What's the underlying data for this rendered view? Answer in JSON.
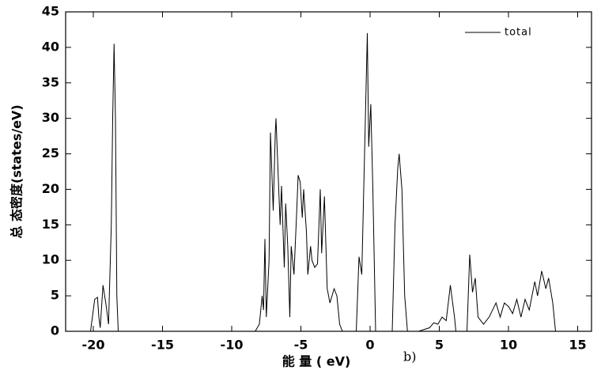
{
  "chart_data": {
    "type": "line",
    "x_label": "能 量 ( eV)",
    "y_label": "总 态密度(states/eV)",
    "annotation": "b)",
    "legend_position": "upper right",
    "xlim": [
      -22,
      16
    ],
    "xticks": [
      -20,
      -15,
      -10,
      -5,
      0,
      5,
      10,
      15
    ],
    "ylim": [
      0,
      45
    ],
    "yticks": [
      0,
      5,
      10,
      15,
      20,
      25,
      30,
      35,
      40,
      45
    ],
    "x": [
      -20.5,
      -20.2,
      -19.9,
      -19.7,
      -19.6,
      -19.5,
      -19.3,
      -19.1,
      -18.9,
      -18.7,
      -18.6,
      -18.5,
      -18.4,
      -18.3,
      -18.2,
      -8.3,
      -8.0,
      -7.8,
      -7.7,
      -7.6,
      -7.5,
      -7.3,
      -7.2,
      -7.0,
      -6.85,
      -6.8,
      -6.6,
      -6.5,
      -6.4,
      -6.2,
      -6.1,
      -5.95,
      -5.8,
      -5.7,
      -5.5,
      -5.3,
      -5.2,
      -5.05,
      -4.9,
      -4.8,
      -4.6,
      -4.5,
      -4.3,
      -4.2,
      -4.0,
      -3.8,
      -3.6,
      -3.5,
      -3.3,
      -3.1,
      -2.9,
      -2.6,
      -2.4,
      -2.2,
      -2.0,
      -1.0,
      -0.8,
      -0.6,
      -0.4,
      -0.2,
      -0.1,
      0.05,
      0.2,
      0.4,
      1.6,
      1.8,
      2.0,
      2.1,
      2.3,
      2.5,
      2.7,
      3.5,
      4.3,
      4.6,
      4.9,
      5.2,
      5.5,
      5.8,
      6.1,
      6.2,
      7.0,
      7.2,
      7.4,
      7.6,
      7.8,
      8.2,
      8.6,
      9.1,
      9.4,
      9.7,
      10.0,
      10.3,
      10.6,
      10.9,
      11.2,
      11.5,
      11.9,
      12.1,
      12.4,
      12.7,
      12.9,
      13.2,
      13.4,
      14.0
    ],
    "series": [
      {
        "name": "total",
        "color": "#000000",
        "values": [
          0,
          0,
          4.5,
          4.8,
          2,
          0.5,
          6.5,
          4,
          1,
          15,
          30,
          40.5,
          30,
          5,
          0,
          0,
          1,
          5,
          3,
          13,
          2,
          10,
          28,
          17,
          28,
          30,
          20,
          15,
          20.5,
          9,
          18,
          12,
          2,
          12,
          8,
          17,
          22,
          21,
          16,
          20,
          14,
          8,
          12,
          10,
          9,
          9.5,
          20,
          11,
          19,
          6,
          4,
          6,
          5,
          1,
          0,
          0,
          10.5,
          8,
          25,
          42,
          26,
          32,
          20,
          0,
          0,
          15,
          23,
          25,
          20,
          5,
          0,
          0,
          0.5,
          1.2,
          1.0,
          2,
          1.5,
          6.5,
          2,
          0,
          0,
          10.8,
          5.5,
          7.5,
          2,
          1,
          2,
          4,
          2,
          4,
          3.5,
          2.5,
          4.5,
          2,
          4.5,
          3,
          7,
          5,
          8.5,
          6,
          7.5,
          4,
          0,
          0
        ]
      }
    ]
  }
}
